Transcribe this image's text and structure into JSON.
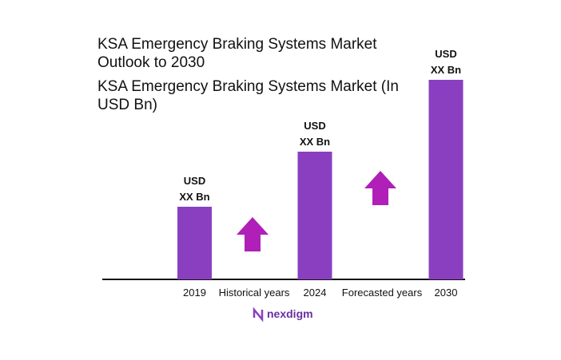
{
  "chart_data": {
    "type": "bar",
    "title": "KSA Emergency Braking Systems Market Outlook to 2030",
    "subtitle": "KSA Emergency Braking Systems Market (In USD Bn)",
    "categories": [
      "2019",
      "2024",
      "2030"
    ],
    "values": [
      91,
      160,
      250
    ],
    "value_labels": [
      [
        "USD",
        "XX Bn"
      ],
      [
        "USD",
        "XX Bn"
      ],
      [
        "USD",
        "XX Bn"
      ]
    ],
    "color": "#8a3fc1",
    "annotations": [
      "Historical years",
      "Forecasted years"
    ],
    "brand": "nexdigm"
  }
}
